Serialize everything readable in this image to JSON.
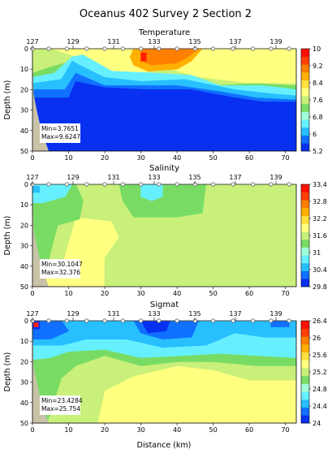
{
  "chart_data": {
    "type": "heatmap",
    "title": "Oceanus 402 Survey 2 Section 2",
    "xlabel": "Distance (km)",
    "ylabel": "Depth (m)",
    "xlim": [
      0,
      73
    ],
    "ylim": [
      50,
      0
    ],
    "x_ticks": [
      "0",
      "10",
      "20",
      "30",
      "40",
      "50",
      "60",
      "70"
    ],
    "y_ticks": [
      "0",
      "10",
      "20",
      "30",
      "40",
      "50"
    ],
    "top_ticks": [
      "127",
      "129",
      "131",
      "133",
      "135",
      "137",
      "139"
    ],
    "station_distances_km": [
      0,
      4.5,
      9.5,
      15,
      20,
      25,
      30,
      35,
      40,
      45,
      50,
      55.5,
      61,
      66,
      71
    ],
    "panels": [
      {
        "title": "Temperature",
        "min_label": "Min=3.7651",
        "max_label": "Max=9.6247",
        "colorbar_ticks": [
          "10",
          "9.2",
          "8.4",
          "7.6",
          "6.8",
          "6",
          "5.2"
        ],
        "colorbar_range": [
          5.2,
          10
        ],
        "levels": [
          {
            "color": "#ffff80",
            "polygon": [
              [
                0,
                0
              ],
              [
                73,
                0
              ],
              [
                73,
                50
              ],
              [
                0,
                50
              ]
            ]
          },
          {
            "color": "#c8f07a",
            "polygon": [
              [
                0,
                0
              ],
              [
                5,
                0
              ],
              [
                12,
                4
              ],
              [
                12,
                13
              ],
              [
                24,
                15
              ],
              [
                36,
                9
              ],
              [
                46,
                14
              ],
              [
                60,
                17
              ],
              [
                73,
                17
              ],
              [
                73,
                50
              ],
              [
                0,
                50
              ]
            ]
          },
          {
            "color": "#78dc64",
            "polygon": [
              [
                0,
                12
              ],
              [
                5,
                9
              ],
              [
                11,
                6
              ],
              [
                12,
                13
              ],
              [
                25,
                16
              ],
              [
                40,
                13
              ],
              [
                50,
                18
              ],
              [
                62,
                17
              ],
              [
                73,
                18
              ],
              [
                73,
                50
              ],
              [
                0,
                50
              ]
            ]
          },
          {
            "color": "#66f0ff",
            "polygon": [
              [
                0,
                14
              ],
              [
                6,
                12
              ],
              [
                11,
                4
              ],
              [
                14,
                3
              ],
              [
                22,
                11
              ],
              [
                35,
                12
              ],
              [
                44,
                13
              ],
              [
                52,
                18
              ],
              [
                64,
                18
              ],
              [
                73,
                20
              ],
              [
                73,
                50
              ],
              [
                0,
                50
              ]
            ]
          },
          {
            "color": "#28bfff",
            "polygon": [
              [
                0,
                17
              ],
              [
                8,
                15
              ],
              [
                11,
                6
              ],
              [
                13,
                8
              ],
              [
                20,
                14
              ],
              [
                30,
                16
              ],
              [
                42,
                15
              ],
              [
                56,
                20
              ],
              [
                66,
                22
              ],
              [
                73,
                23
              ],
              [
                73,
                50
              ],
              [
                0,
                50
              ]
            ]
          },
          {
            "color": "#1070ff",
            "polygon": [
              [
                0,
                20
              ],
              [
                9,
                20
              ],
              [
                12,
                12
              ],
              [
                20,
                18
              ],
              [
                30,
                18
              ],
              [
                40,
                18
              ],
              [
                52,
                21
              ],
              [
                62,
                24
              ],
              [
                73,
                25
              ],
              [
                73,
                50
              ],
              [
                0,
                50
              ]
            ]
          },
          {
            "color": "#0830f0",
            "polygon": [
              [
                0,
                24
              ],
              [
                10,
                24
              ],
              [
                12,
                16
              ],
              [
                20,
                19
              ],
              [
                32,
                20
              ],
              [
                44,
                20
              ],
              [
                56,
                24
              ],
              [
                64,
                26
              ],
              [
                73,
                26
              ],
              [
                73,
                50
              ],
              [
                0,
                50
              ]
            ]
          },
          {
            "color": "#ffb000",
            "polygon": [
              [
                28,
                0
              ],
              [
                47,
                0
              ],
              [
                44,
                6
              ],
              [
                40,
                10
              ],
              [
                32,
                11
              ],
              [
                28,
                8
              ],
              [
                27,
                4
              ]
            ]
          },
          {
            "color": "#ff8000",
            "polygon": [
              [
                30,
                0
              ],
              [
                46,
                0
              ],
              [
                43,
                4
              ],
              [
                40,
                7
              ],
              [
                33,
                8
              ],
              [
                30,
                6
              ]
            ]
          },
          {
            "color": "#ff2000",
            "polygon": [
              [
                30,
                2
              ],
              [
                31.5,
                2
              ],
              [
                31.5,
                6
              ],
              [
                30,
                6
              ]
            ]
          }
        ]
      },
      {
        "title": "Salinity",
        "min_label": "Min=30.1047",
        "max_label": "Max=32.376",
        "colorbar_ticks": [
          "33.4",
          "32.8",
          "32.2",
          "31.6",
          "31",
          "30.4",
          "29.8"
        ],
        "colorbar_range": [
          29.8,
          33.4
        ],
        "levels": [
          {
            "color": "#ffff80",
            "polygon": [
              [
                0,
                0
              ],
              [
                73,
                0
              ],
              [
                73,
                50
              ],
              [
                0,
                50
              ]
            ]
          },
          {
            "color": "#c8f07a",
            "polygon": [
              [
                0,
                0
              ],
              [
                73,
                0
              ],
              [
                73,
                50
              ],
              [
                20,
                50
              ],
              [
                20,
                36
              ],
              [
                24,
                26
              ],
              [
                22,
                18
              ],
              [
                12,
                16
              ],
              [
                8,
                40
              ],
              [
                0,
                50
              ]
            ]
          },
          {
            "color": "#78dc64",
            "polygon": [
              [
                0,
                0
              ],
              [
                12,
                0
              ],
              [
                14,
                8
              ],
              [
                13,
                17
              ],
              [
                7,
                20
              ],
              [
                5,
                33
              ],
              [
                3,
                50
              ],
              [
                0,
                50
              ]
            ]
          },
          {
            "color": "#78dc64",
            "polygon": [
              [
                24,
                0
              ],
              [
                48,
                0
              ],
              [
                47,
                14
              ],
              [
                40,
                16
              ],
              [
                28,
                16
              ],
              [
                25,
                8
              ]
            ]
          },
          {
            "color": "#66f0ff",
            "polygon": [
              [
                0,
                0
              ],
              [
                11,
                0
              ],
              [
                9,
                6
              ],
              [
                3,
                9
              ],
              [
                0,
                9
              ]
            ]
          },
          {
            "color": "#66f0ff",
            "polygon": [
              [
                30,
                0
              ],
              [
                36,
                0
              ],
              [
                36,
                6
              ],
              [
                33,
                8
              ],
              [
                30,
                6
              ]
            ]
          },
          {
            "color": "#28bfff",
            "polygon": [
              [
                0,
                1
              ],
              [
                2,
                1
              ],
              [
                2,
                4
              ],
              [
                0,
                4
              ]
            ]
          }
        ]
      },
      {
        "title": "Sigmat",
        "min_label": "Min=23.4284",
        "max_label": "Max=25.754",
        "colorbar_ticks": [
          "26.4",
          "26",
          "25.6",
          "25.2",
          "24.8",
          "24.4",
          "24"
        ],
        "colorbar_range": [
          24,
          26.4
        ],
        "levels": [
          {
            "color": "#ffff80",
            "polygon": [
              [
                0,
                0
              ],
              [
                73,
                0
              ],
              [
                73,
                50
              ],
              [
                0,
                50
              ]
            ]
          },
          {
            "color": "#c8f07a",
            "polygon": [
              [
                0,
                0
              ],
              [
                73,
                0
              ],
              [
                73,
                29
              ],
              [
                60,
                29
              ],
              [
                50,
                24
              ],
              [
                40,
                22
              ],
              [
                28,
                27
              ],
              [
                20,
                34
              ],
              [
                18,
                50
              ],
              [
                0,
                50
              ]
            ]
          },
          {
            "color": "#78dc64",
            "polygon": [
              [
                0,
                0
              ],
              [
                73,
                0
              ],
              [
                73,
                22
              ],
              [
                62,
                22
              ],
              [
                50,
                20
              ],
              [
                40,
                20
              ],
              [
                30,
                22
              ],
              [
                20,
                17
              ],
              [
                12,
                22
              ],
              [
                8,
                28
              ],
              [
                4,
                50
              ],
              [
                0,
                50
              ]
            ]
          },
          {
            "color": "#66f0ff",
            "polygon": [
              [
                0,
                0
              ],
              [
                73,
                0
              ],
              [
                73,
                18
              ],
              [
                62,
                17
              ],
              [
                52,
                16
              ],
              [
                42,
                17
              ],
              [
                30,
                18
              ],
              [
                20,
                14
              ],
              [
                10,
                15
              ],
              [
                5,
                18
              ],
              [
                0,
                19
              ]
            ]
          },
          {
            "color": "#28bfff",
            "polygon": [
              [
                0,
                0
              ],
              [
                73,
                0
              ],
              [
                73,
                8
              ],
              [
                64,
                8
              ],
              [
                56,
                6
              ],
              [
                48,
                12
              ],
              [
                36,
                13
              ],
              [
                26,
                9
              ],
              [
                15,
                9
              ],
              [
                8,
                12
              ],
              [
                0,
                12
              ]
            ]
          },
          {
            "color": "#1070ff",
            "polygon": [
              [
                0,
                0
              ],
              [
                8,
                0
              ],
              [
                10,
                5
              ],
              [
                5,
                9
              ],
              [
                0,
                9
              ]
            ]
          },
          {
            "color": "#1070ff",
            "polygon": [
              [
                28,
                0
              ],
              [
                46,
                0
              ],
              [
                44,
                8
              ],
              [
                36,
                9
              ],
              [
                30,
                6
              ]
            ]
          },
          {
            "color": "#1070ff",
            "polygon": [
              [
                66,
                0
              ],
              [
                71,
                0
              ],
              [
                71,
                3
              ],
              [
                66,
                3
              ]
            ]
          },
          {
            "color": "#0830f0",
            "polygon": [
              [
                30,
                0
              ],
              [
                38,
                0
              ],
              [
                37,
                5
              ],
              [
                32,
                6
              ]
            ]
          },
          {
            "color": "#0830f0",
            "polygon": [
              [
                0,
                0
              ],
              [
                2,
                0
              ],
              [
                2,
                4
              ],
              [
                0,
                4
              ]
            ]
          },
          {
            "color": "#ff2000",
            "polygon": [
              [
                0.4,
                1
              ],
              [
                1.6,
                1
              ],
              [
                1.6,
                3
              ],
              [
                0.4,
                3
              ]
            ]
          }
        ]
      }
    ],
    "colorbar_colors": [
      "#0830f0",
      "#1070ff",
      "#28bfff",
      "#66f0ff",
      "#a0ffd8",
      "#78dc64",
      "#c8f07a",
      "#ffff80",
      "#ffe040",
      "#ffb000",
      "#ff8000",
      "#ff4000",
      "#ff1000"
    ],
    "bathymetry": [
      [
        0,
        0
      ],
      [
        0.3,
        22
      ],
      [
        1.2,
        30
      ],
      [
        2.2,
        38
      ],
      [
        3.5,
        45
      ],
      [
        4.5,
        50
      ],
      [
        0,
        50
      ]
    ],
    "bathymetry_color": "#c8c3a8"
  }
}
